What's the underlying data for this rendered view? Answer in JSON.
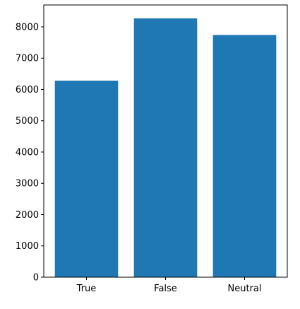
{
  "chart_data": {
    "type": "bar",
    "categories": [
      "True",
      "False",
      "Neutral"
    ],
    "values": [
      6280,
      8270,
      7740
    ],
    "title": "",
    "xlabel": "",
    "ylabel": "",
    "ylim": [
      0,
      8700
    ],
    "yticks": [
      0,
      1000,
      2000,
      3000,
      4000,
      5000,
      6000,
      7000,
      8000
    ],
    "bar_color": "#1f77b4",
    "grid": false,
    "legend": "none"
  }
}
